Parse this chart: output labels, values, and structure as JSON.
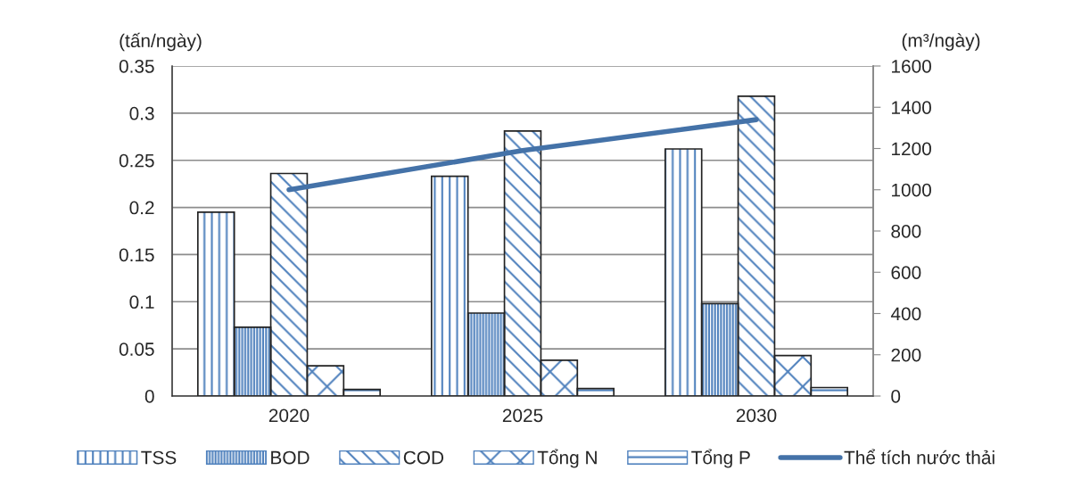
{
  "chart_data": {
    "type": "bar",
    "ylabel": "(tấn/ngày)",
    "y2label": "(m³/ngày)",
    "categories": [
      "2020",
      "2025",
      "2030"
    ],
    "series": [
      {
        "name": "TSS",
        "color": "#4f81bd",
        "values": [
          0.195,
          0.233,
          0.262
        ]
      },
      {
        "name": "BOD",
        "color": "#4f81bd",
        "values": [
          0.073,
          0.088,
          0.098
        ]
      },
      {
        "name": "COD",
        "color": "#4f81bd",
        "values": [
          0.236,
          0.281,
          0.318
        ]
      },
      {
        "name": "Tổng N",
        "color": "#4f81bd",
        "values": [
          0.032,
          0.038,
          0.043
        ]
      },
      {
        "name": "Tổng P",
        "color": "#4f81bd",
        "values": [
          0.007,
          0.008,
          0.009
        ]
      },
      {
        "name": "Thể tích nước thải",
        "type": "line",
        "axis": "y2",
        "color": "#4472a8",
        "values": [
          1000,
          1190,
          1340
        ]
      }
    ],
    "ylim": [
      0,
      0.35
    ],
    "yticks": [
      0,
      0.05,
      0.1,
      0.15,
      0.2,
      0.25,
      0.3,
      0.35
    ],
    "y2lim": [
      0,
      1600
    ],
    "y2ticks": [
      0,
      200,
      400,
      600,
      800,
      1000,
      1200,
      1400,
      1600
    ],
    "grid": "y",
    "legend": "bottom",
    "marker": "none",
    "line_style": "solid"
  }
}
